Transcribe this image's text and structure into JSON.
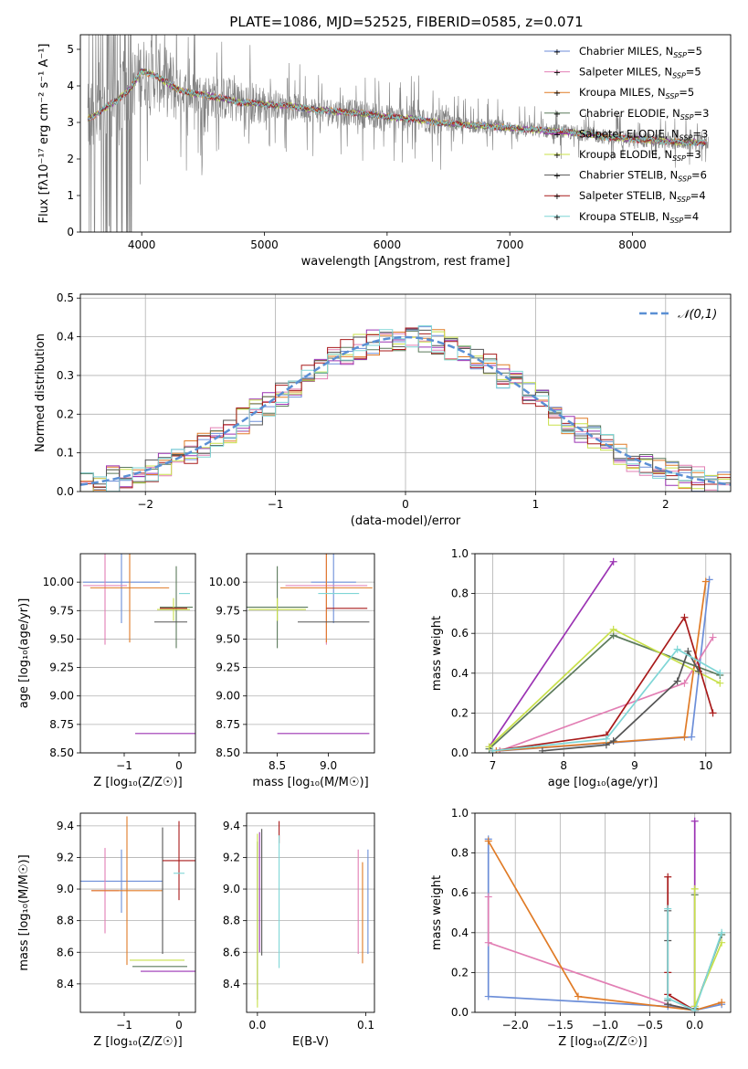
{
  "figure": {
    "title": "PLATE=1086, MJD=52525, FIBERID=0585, z=0.071"
  },
  "colors": {
    "observed": "#808080",
    "normal_curve": "#5a8fd4"
  },
  "models": [
    {
      "key": "chabrier_miles",
      "name": "Chabrier MILES",
      "nssp": 5,
      "color": "#6c8ed8"
    },
    {
      "key": "salpeter_miles",
      "name": "Salpeter MILES",
      "nssp": 5,
      "color": "#e27fb4"
    },
    {
      "key": "kroupa_miles",
      "name": "Kroupa MILES",
      "nssp": 5,
      "color": "#e07b26"
    },
    {
      "key": "chabrier_elodie",
      "name": "Chabrier ELODIE",
      "nssp": 3,
      "color": "#5b7a5b"
    },
    {
      "key": "salpeter_elodie",
      "name": "Salpeter ELODIE",
      "nssp": 3,
      "color": "#9b33b3"
    },
    {
      "key": "kroupa_elodie",
      "name": "Kroupa ELODIE",
      "nssp": 3,
      "color": "#c8e04a"
    },
    {
      "key": "chabrier_stelib",
      "name": "Chabrier STELIB",
      "nssp": 6,
      "color": "#555555"
    },
    {
      "key": "salpeter_stelib",
      "name": "Salpeter STELIB",
      "nssp": 4,
      "color": "#a81a1a"
    },
    {
      "key": "kroupa_stelib",
      "name": "Kroupa STELIB",
      "nssp": 4,
      "color": "#7fd6d6"
    }
  ],
  "chart_data": [
    {
      "id": "spectrum",
      "type": "line",
      "xlabel": "wavelength [Angstrom, rest frame]",
      "ylabel": "Flux [fλ10⁻¹⁷ erg cm⁻² s⁻¹ A⁻¹]",
      "xlim": [
        3500,
        8800
      ],
      "ylim": [
        0,
        5.4
      ],
      "xticks": [
        4000,
        5000,
        6000,
        7000,
        8000
      ],
      "yticks": [
        0,
        1,
        2,
        3,
        4,
        5
      ],
      "legend_position": "top-right",
      "legend": [
        "Chabrier MILES, NSSP=5",
        "Salpeter MILES, NSSP=5",
        "Kroupa MILES, NSSP=5",
        "Chabrier ELODIE, NSSP=3",
        "Salpeter ELODIE, NSSP=3",
        "Kroupa ELODIE, NSSP=3",
        "Chabrier STELIB, NSSP=6",
        "Salpeter STELIB, NSSP=4",
        "Kroupa STELIB, NSSP=4"
      ],
      "model_continuum": {
        "x": [
          3560,
          3620,
          3700,
          3800,
          3900,
          4000,
          4100,
          4200,
          4300,
          4400,
          4600,
          4800,
          5000,
          5200,
          5400,
          5600,
          5800,
          6000,
          6200,
          6400,
          6600,
          6800,
          7000,
          7200,
          7400,
          7600,
          7800,
          8000,
          8200,
          8400,
          8600
        ],
        "y": [
          3.1,
          3.2,
          3.4,
          3.6,
          3.9,
          4.4,
          4.3,
          4.1,
          3.9,
          3.8,
          3.7,
          3.55,
          3.5,
          3.45,
          3.35,
          3.3,
          3.25,
          3.15,
          3.1,
          3.0,
          2.95,
          2.9,
          2.85,
          2.8,
          2.75,
          2.7,
          2.6,
          2.55,
          2.5,
          2.45,
          2.45
        ]
      }
    },
    {
      "id": "residuals",
      "type": "bar",
      "xlabel": "(data-model)/error",
      "ylabel": "Normed distribution",
      "xlim": [
        -2.5,
        2.5
      ],
      "ylim": [
        0,
        0.51
      ],
      "xticks": [
        -2,
        -1,
        0,
        1,
        2
      ],
      "yticks": [
        0.0,
        0.1,
        0.2,
        0.3,
        0.4,
        0.5
      ],
      "grid": true,
      "legend_position": "top-right",
      "legend": [
        "𝒩(0,1)"
      ],
      "bin_width": 0.1
    },
    {
      "id": "age_vs_Z",
      "type": "scatter",
      "xlabel": "Z [log₁₀(Z/Z☉)]",
      "ylabel": "age  [log₁₀(age/yr)]",
      "xlim": [
        -1.8,
        0.3
      ],
      "ylim": [
        8.5,
        10.25
      ],
      "xticks": [
        -1,
        0
      ],
      "yticks": [
        8.5,
        8.75,
        9.0,
        9.25,
        9.5,
        9.75,
        10.0
      ],
      "points": [
        {
          "model": "chabrier_miles",
          "x": -1.05,
          "y": 10.0,
          "xerr": 0.7,
          "yerr": 0.36
        },
        {
          "model": "salpeter_miles",
          "x": -1.35,
          "y": 9.97,
          "xerr": 0.4,
          "yerr": 0.52
        },
        {
          "model": "kroupa_miles",
          "x": -0.9,
          "y": 9.95,
          "xerr": 0.72,
          "yerr": 0.48
        },
        {
          "model": "chabrier_elodie",
          "x": -0.05,
          "y": 9.78,
          "xerr": 0.3,
          "yerr": 0.36
        },
        {
          "model": "salpeter_elodie",
          "x": -0.25,
          "y": 8.67,
          "xerr": 0.55,
          "yerr": 0.0
        },
        {
          "model": "kroupa_elodie",
          "x": -0.1,
          "y": 9.76,
          "xerr": 0.3,
          "yerr": 0.1
        },
        {
          "model": "chabrier_stelib",
          "x": -0.15,
          "y": 9.65,
          "xerr": 0.3,
          "yerr": 0.0
        },
        {
          "model": "salpeter_stelib",
          "x": -0.1,
          "y": 9.77,
          "xerr": 0.25,
          "yerr": 0.0
        },
        {
          "model": "kroupa_stelib",
          "x": 0.1,
          "y": 9.9,
          "xerr": 0.1,
          "yerr": 0.0
        }
      ]
    },
    {
      "id": "age_vs_mass",
      "type": "scatter",
      "xlabel": "mass [log₁₀(M/M☉)]",
      "ylabel": "",
      "xlim": [
        8.2,
        9.45
      ],
      "ylim": [
        8.5,
        10.25
      ],
      "xticks": [
        8.5,
        9.0
      ],
      "yticks": [
        8.5,
        8.75,
        9.0,
        9.25,
        9.5,
        9.75,
        10.0
      ],
      "points": [
        {
          "model": "chabrier_miles",
          "x": 9.05,
          "y": 10.0,
          "xerr": 0.22,
          "yerr": 0.36
        },
        {
          "model": "salpeter_miles",
          "x": 8.98,
          "y": 9.97,
          "xerr": 0.4,
          "yerr": 0.52
        },
        {
          "model": "kroupa_miles",
          "x": 8.98,
          "y": 9.95,
          "xerr": 0.45,
          "yerr": 0.48
        },
        {
          "model": "chabrier_elodie",
          "x": 8.5,
          "y": 9.78,
          "xerr": 0.3,
          "yerr": 0.36
        },
        {
          "model": "salpeter_elodie",
          "x": 8.95,
          "y": 8.67,
          "xerr": 0.45,
          "yerr": 0.0
        },
        {
          "model": "kroupa_elodie",
          "x": 8.5,
          "y": 9.76,
          "xerr": 0.28,
          "yerr": 0.1
        },
        {
          "model": "chabrier_stelib",
          "x": 9.05,
          "y": 9.65,
          "xerr": 0.35,
          "yerr": 0.0
        },
        {
          "model": "salpeter_stelib",
          "x": 9.18,
          "y": 9.77,
          "xerr": 0.2,
          "yerr": 0.0
        },
        {
          "model": "kroupa_stelib",
          "x": 9.1,
          "y": 9.9,
          "xerr": 0.2,
          "yerr": 0.0
        }
      ]
    },
    {
      "id": "weight_vs_age",
      "type": "line",
      "xlabel": "age  [log₁₀(age/yr)]",
      "ylabel": "mass weight",
      "xlim": [
        6.75,
        10.35
      ],
      "ylim": [
        0,
        1
      ],
      "xticks": [
        7,
        8,
        9,
        10
      ],
      "yticks": [
        0.0,
        0.2,
        0.4,
        0.6,
        0.8,
        1.0
      ],
      "grid": true,
      "series": [
        {
          "model": "chabrier_miles",
          "x": [
            7.1,
            9.8,
            10.05
          ],
          "y": [
            0.01,
            0.08,
            0.87
          ]
        },
        {
          "model": "salpeter_miles",
          "x": [
            7.1,
            9.7,
            10.1
          ],
          "y": [
            0.01,
            0.35,
            0.58
          ]
        },
        {
          "model": "kroupa_miles",
          "x": [
            7.05,
            9.7,
            10.0
          ],
          "y": [
            0.01,
            0.08,
            0.86
          ]
        },
        {
          "model": "chabrier_elodie",
          "x": [
            6.95,
            8.7,
            10.2
          ],
          "y": [
            0.02,
            0.59,
            0.39
          ]
        },
        {
          "model": "salpeter_elodie",
          "x": [
            6.95,
            8.7
          ],
          "y": [
            0.03,
            0.96
          ]
        },
        {
          "model": "kroupa_elodie",
          "x": [
            6.95,
            8.7,
            10.2
          ],
          "y": [
            0.03,
            0.62,
            0.35
          ]
        },
        {
          "model": "chabrier_stelib",
          "x": [
            7.7,
            8.6,
            8.7,
            9.6,
            9.75,
            9.9
          ],
          "y": [
            0.01,
            0.04,
            0.06,
            0.36,
            0.51,
            0.41
          ]
        },
        {
          "model": "salpeter_stelib",
          "x": [
            7.0,
            8.6,
            9.7,
            10.1
          ],
          "y": [
            0.01,
            0.09,
            0.68,
            0.2
          ]
        },
        {
          "model": "kroupa_stelib",
          "x": [
            7.0,
            8.6,
            9.6,
            10.2
          ],
          "y": [
            0.01,
            0.07,
            0.52,
            0.4
          ]
        }
      ]
    },
    {
      "id": "mass_vs_Z",
      "type": "scatter",
      "xlabel": "Z [log₁₀(Z/Z☉)]",
      "ylabel": "mass [log₁₀(M/M☉)]",
      "xlim": [
        -1.8,
        0.3
      ],
      "ylim": [
        8.22,
        9.48
      ],
      "xticks": [
        -1,
        0
      ],
      "yticks": [
        8.4,
        8.6,
        8.8,
        9.0,
        9.2,
        9.4
      ],
      "points": [
        {
          "model": "chabrier_miles",
          "x": -1.05,
          "y": 9.05,
          "xerr": 0.75,
          "yerr": 0.2
        },
        {
          "model": "salpeter_miles",
          "x": -1.35,
          "y": 8.99,
          "xerr": 0.25,
          "yerr": 0.27
        },
        {
          "model": "kroupa_miles",
          "x": -0.95,
          "y": 8.99,
          "xerr": 0.65,
          "yerr": 0.47
        },
        {
          "model": "chabrier_elodie",
          "x": -0.35,
          "y": 8.51,
          "xerr": 0.5,
          "yerr": 0.0
        },
        {
          "model": "salpeter_elodie",
          "x": -0.2,
          "y": 8.48,
          "xerr": 0.5,
          "yerr": 0.0
        },
        {
          "model": "kroupa_elodie",
          "x": -0.4,
          "y": 8.55,
          "xerr": 0.5,
          "yerr": 0.0
        },
        {
          "model": "chabrier_stelib",
          "x": -0.3,
          "y": 8.99,
          "xerr": 0.0,
          "yerr": 0.4
        },
        {
          "model": "salpeter_stelib",
          "x": 0.0,
          "y": 9.18,
          "xerr": 0.3,
          "yerr": 0.25
        },
        {
          "model": "kroupa_stelib",
          "x": 0.0,
          "y": 9.1,
          "xerr": 0.1,
          "yerr": 0.0
        }
      ]
    },
    {
      "id": "mass_vs_ebv",
      "type": "scatter",
      "xlabel": "E(B-V)",
      "ylabel": "",
      "xlim": [
        -0.01,
        0.108
      ],
      "ylim": [
        8.22,
        9.48
      ],
      "xticks": [
        0.0,
        0.1
      ],
      "yticks": [
        8.4,
        8.6,
        8.8,
        9.0,
        9.2,
        9.4
      ],
      "points": [
        {
          "model": "chabrier_miles",
          "x": 0.102,
          "y": 8.92,
          "yerr": 0.33
        },
        {
          "model": "salpeter_miles",
          "x": 0.093,
          "y": 8.92,
          "yerr": 0.33
        },
        {
          "model": "kroupa_miles",
          "x": 0.097,
          "y": 8.85,
          "yerr": 0.32
        },
        {
          "model": "chabrier_elodie",
          "x": 0.0,
          "y": 8.8,
          "yerr": 0.5
        },
        {
          "model": "salpeter_elodie",
          "x": 0.002,
          "y": 8.98,
          "yerr": 0.38
        },
        {
          "model": "kroupa_elodie",
          "x": 0.0,
          "y": 8.8,
          "yerr": 0.55
        },
        {
          "model": "chabrier_stelib",
          "x": 0.004,
          "y": 8.98,
          "yerr": 0.4
        },
        {
          "model": "salpeter_stelib",
          "x": 0.02,
          "y": 9.36,
          "yerr": 0.07
        },
        {
          "model": "kroupa_stelib",
          "x": 0.02,
          "y": 8.92,
          "yerr": 0.42
        }
      ]
    },
    {
      "id": "weight_vs_Z",
      "type": "line",
      "xlabel": "Z [log₁₀(Z/Z☉)]",
      "ylabel": "mass weight",
      "xlim": [
        -2.45,
        0.4
      ],
      "ylim": [
        0,
        1
      ],
      "xticks": [
        -2.0,
        -1.5,
        -1.0,
        -0.5,
        0.0
      ],
      "yticks": [
        0.0,
        0.2,
        0.4,
        0.6,
        0.8,
        1.0
      ],
      "grid": true,
      "series": [
        {
          "model": "chabrier_miles",
          "x": [
            -2.3,
            -2.3,
            -0.3,
            0.0,
            0.3
          ],
          "y": [
            0.87,
            0.08,
            0.03,
            0.01,
            0.04
          ]
        },
        {
          "model": "salpeter_miles",
          "x": [
            -2.3,
            -2.3,
            -0.3,
            0.0
          ],
          "y": [
            0.58,
            0.35,
            0.04,
            0.01
          ]
        },
        {
          "model": "kroupa_miles",
          "x": [
            -2.3,
            -1.3,
            0.0,
            0.3
          ],
          "y": [
            0.86,
            0.08,
            0.01,
            0.05
          ]
        },
        {
          "model": "chabrier_elodie",
          "x": [
            0.0,
            0.0,
            0.3
          ],
          "y": [
            0.59,
            0.02,
            0.39
          ]
        },
        {
          "model": "salpeter_elodie",
          "x": [
            0.0,
            0.0
          ],
          "y": [
            0.96,
            0.03
          ]
        },
        {
          "model": "kroupa_elodie",
          "x": [
            0.0,
            0.0,
            0.3
          ],
          "y": [
            0.62,
            0.03,
            0.35
          ]
        },
        {
          "model": "chabrier_stelib",
          "x": [
            -0.3,
            -0.3,
            -0.3,
            -0.3,
            0.0
          ],
          "y": [
            0.51,
            0.36,
            0.06,
            0.04,
            0.01
          ]
        },
        {
          "model": "salpeter_stelib",
          "x": [
            -0.3,
            -0.3,
            -0.3,
            0.0
          ],
          "y": [
            0.68,
            0.2,
            0.09,
            0.01
          ]
        },
        {
          "model": "kroupa_stelib",
          "x": [
            -0.3,
            -0.3,
            0.0,
            0.3
          ],
          "y": [
            0.52,
            0.07,
            0.01,
            0.4
          ]
        }
      ]
    }
  ]
}
